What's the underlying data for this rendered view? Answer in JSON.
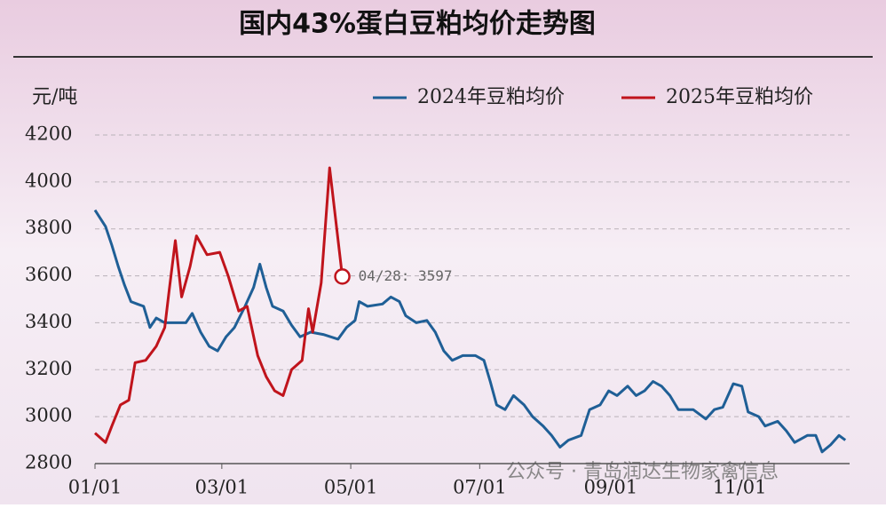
{
  "chart_data": {
    "type": "line",
    "title": "国内43%蛋白豆粕均价走势图",
    "y_label": "元/吨",
    "annotation": "04/28: 3597",
    "watermark": "公众号 · 青岛润达生物家禽信息",
    "ylim": [
      2800,
      4200
    ],
    "yticks": [
      2800,
      3000,
      3200,
      3400,
      3600,
      3800,
      4000,
      4200
    ],
    "xlim": [
      0,
      357
    ],
    "xticks": [
      {
        "value": 0,
        "label": "01/01"
      },
      {
        "value": 60,
        "label": "03/01"
      },
      {
        "value": 121,
        "label": "05/01"
      },
      {
        "value": 182,
        "label": "07/01"
      },
      {
        "value": 244,
        "label": "09/01"
      },
      {
        "value": 305,
        "label": "11/01"
      }
    ],
    "grid": true,
    "legend": "top-right",
    "series": [
      {
        "name": "2024年豆粕均价",
        "color": "#1f5f96",
        "x": [
          0,
          5,
          8,
          11,
          14,
          17,
          20,
          23,
          26,
          29,
          33,
          43,
          46,
          50,
          54,
          58,
          62,
          66,
          71,
          75,
          78,
          81,
          84,
          89,
          93,
          97,
          102,
          108,
          115,
          119,
          123,
          125,
          129,
          136,
          140,
          144,
          147,
          152,
          157,
          161,
          165,
          169,
          174,
          180,
          184,
          187,
          190,
          194,
          198,
          203,
          207,
          212,
          216,
          220,
          224,
          230,
          234,
          239,
          243,
          247,
          252,
          256,
          260,
          264,
          268,
          272,
          276,
          283,
          289,
          293,
          297,
          302,
          306,
          309,
          314,
          317,
          323,
          327,
          331,
          337,
          341,
          344,
          348,
          352,
          355
        ],
        "values": [
          3880,
          3810,
          3730,
          3640,
          3560,
          3490,
          3480,
          3470,
          3380,
          3420,
          3400,
          3400,
          3440,
          3360,
          3300,
          3280,
          3340,
          3380,
          3470,
          3550,
          3650,
          3550,
          3470,
          3450,
          3390,
          3340,
          3360,
          3350,
          3330,
          3380,
          3410,
          3490,
          3470,
          3480,
          3510,
          3490,
          3430,
          3400,
          3410,
          3360,
          3280,
          3240,
          3260,
          3260,
          3240,
          3150,
          3050,
          3030,
          3090,
          3050,
          3000,
          2960,
          2920,
          2870,
          2900,
          2920,
          3030,
          3050,
          3110,
          3090,
          3130,
          3090,
          3110,
          3150,
          3130,
          3090,
          3030,
          3030,
          2990,
          3030,
          3040,
          3140,
          3130,
          3020,
          3000,
          2960,
          2980,
          2940,
          2890,
          2920,
          2920,
          2850,
          2880,
          2920,
          2900
        ]
      },
      {
        "name": "2025年豆粕均价",
        "color": "#c0141c",
        "x": [
          0,
          5,
          8,
          12,
          16,
          19,
          24,
          29,
          33,
          35,
          38,
          41,
          45,
          48,
          53,
          59,
          63,
          68,
          72,
          77,
          81,
          85,
          89,
          93,
          98,
          101,
          103,
          107,
          111,
          117
        ],
        "values": [
          2930,
          2890,
          2960,
          3050,
          3070,
          3230,
          3240,
          3300,
          3380,
          3530,
          3750,
          3510,
          3640,
          3770,
          3690,
          3700,
          3600,
          3450,
          3470,
          3260,
          3170,
          3110,
          3090,
          3200,
          3240,
          3460,
          3360,
          3570,
          4060,
          3597
        ]
      }
    ]
  }
}
